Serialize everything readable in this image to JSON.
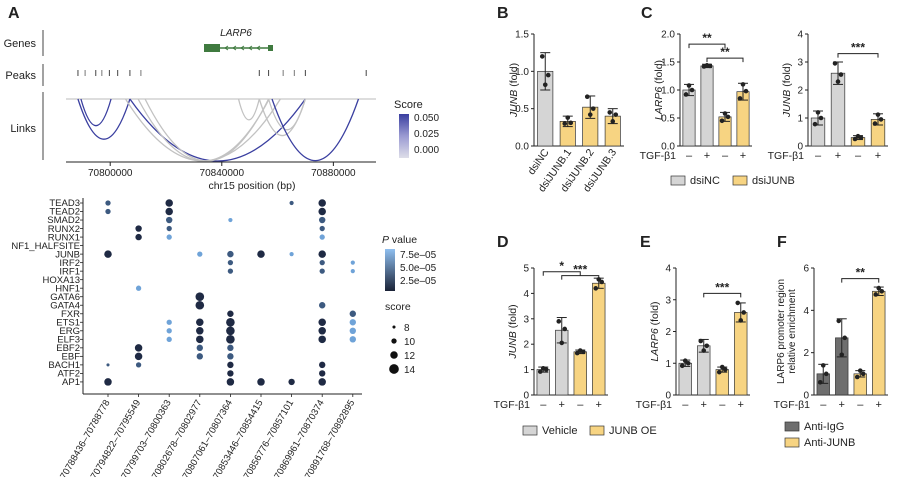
{
  "colors": {
    "grey": "#d5d5d5",
    "dark_grey": "#6e6e6e",
    "yellow": "#f7d482",
    "gene_green": "#3f7a3f",
    "link_blue": "#3a3fa0",
    "link_grey": "#c2c2c2",
    "dot_dark": "#1f2a44",
    "dot_mid": "#3d5a80",
    "dot_light": "#6fa3d8",
    "red_text": "#cc2222"
  },
  "panel_a": {
    "letter": "A",
    "tracks": [
      "Genes",
      "Peaks",
      "Links"
    ],
    "gene_label": "LARP6",
    "score_legend": {
      "title": "Score",
      "ticks": [
        "0.050",
        "0.025",
        "0.000"
      ]
    },
    "xaxis": {
      "label": "chr15 position (bp)",
      "ticks": [
        "70800000",
        "70840000",
        "70880000"
      ],
      "range": [
        70782000,
        70896000
      ]
    },
    "peaks": [
      70788436,
      70794822,
      70799703,
      70802678,
      70807061,
      70853446,
      70856776,
      70869961,
      70891768
    ],
    "links": [
      {
        "from": 70788436,
        "to": 70807061,
        "color": "blue"
      },
      {
        "from": 70789500,
        "to": 70800300,
        "color": "blue"
      },
      {
        "from": 70807061,
        "to": 70869961,
        "color": "blue"
      },
      {
        "from": 70805500,
        "to": 70861000,
        "color": "grey"
      },
      {
        "from": 70810000,
        "to": 70857000,
        "color": "grey"
      },
      {
        "from": 70812500,
        "to": 70856776,
        "color": "grey"
      },
      {
        "from": 70853446,
        "to": 70869961,
        "color": "grey"
      },
      {
        "from": 70856776,
        "to": 70869961,
        "color": "grey"
      },
      {
        "from": 70846000,
        "to": 70853446,
        "color": "grey"
      },
      {
        "from": 70858000,
        "to": 70889000,
        "color": "blue"
      }
    ],
    "dotplot": {
      "tfs": [
        "TEAD3",
        "TEAD2",
        "SMAD2",
        "RUNX2",
        "RUNX1",
        "NF1_HALFSITE",
        "JUNB",
        "IRF2",
        "IRF1",
        "HOXA13",
        "HNF1",
        "GATA6",
        "GATA4",
        "FXR",
        "ETS1",
        "ERG",
        "ELF3",
        "EBF2",
        "EBF",
        "BACH1",
        "ATF2",
        "AP1"
      ],
      "highlight_tf": "JUNB",
      "regions": [
        "70788436–70788778",
        "70794822–70795549",
        "70799703–70800363",
        "70802678–70802977",
        "70807061–70807364",
        "70853446–70854415",
        "70856776–70857101",
        "70869961–70870374",
        "70891768–70892895"
      ],
      "highlight_region": "70853446–70854415",
      "pvalue_legend": {
        "title": "P value",
        "ticks": [
          "7.5e–05",
          "5.0e–05",
          "2.5e–05"
        ]
      },
      "score_legend": {
        "title": "score",
        "ticks": [
          "8",
          "10",
          "12",
          "14"
        ]
      },
      "dots": [
        {
          "tf": "TEAD3",
          "region": 0,
          "score": 10,
          "shade": "mid"
        },
        {
          "tf": "TEAD3",
          "region": 2,
          "score": 12,
          "shade": "dark"
        },
        {
          "tf": "TEAD3",
          "region": 6,
          "score": 9,
          "shade": "mid"
        },
        {
          "tf": "TEAD3",
          "region": 7,
          "score": 12,
          "shade": "dark"
        },
        {
          "tf": "TEAD2",
          "region": 0,
          "score": 10,
          "shade": "mid"
        },
        {
          "tf": "TEAD2",
          "region": 2,
          "score": 12,
          "shade": "dark"
        },
        {
          "tf": "TEAD2",
          "region": 7,
          "score": 12,
          "shade": "dark"
        },
        {
          "tf": "SMAD2",
          "region": 2,
          "score": 11,
          "shade": "mid"
        },
        {
          "tf": "SMAD2",
          "region": 4,
          "score": 9,
          "shade": "light"
        },
        {
          "tf": "SMAD2",
          "region": 7,
          "score": 11,
          "shade": "mid"
        },
        {
          "tf": "RUNX2",
          "region": 1,
          "score": 11,
          "shade": "dark"
        },
        {
          "tf": "RUNX2",
          "region": 2,
          "score": 10,
          "shade": "mid"
        },
        {
          "tf": "RUNX2",
          "region": 7,
          "score": 10,
          "shade": "mid"
        },
        {
          "tf": "RUNX1",
          "region": 1,
          "score": 11,
          "shade": "dark"
        },
        {
          "tf": "RUNX1",
          "region": 2,
          "score": 10,
          "shade": "light"
        },
        {
          "tf": "RUNX1",
          "region": 7,
          "score": 10,
          "shade": "light"
        },
        {
          "tf": "JUNB",
          "region": 0,
          "score": 12,
          "shade": "dark"
        },
        {
          "tf": "JUNB",
          "region": 3,
          "score": 10,
          "shade": "light"
        },
        {
          "tf": "JUNB",
          "region": 4,
          "score": 11,
          "shade": "mid"
        },
        {
          "tf": "JUNB",
          "region": 5,
          "score": 12,
          "shade": "dark"
        },
        {
          "tf": "JUNB",
          "region": 6,
          "score": 9,
          "shade": "light"
        },
        {
          "tf": "JUNB",
          "region": 7,
          "score": 12,
          "shade": "dark"
        },
        {
          "tf": "IRF2",
          "region": 4,
          "score": 10,
          "shade": "mid"
        },
        {
          "tf": "IRF2",
          "region": 7,
          "score": 10,
          "shade": "mid"
        },
        {
          "tf": "IRF2",
          "region": 8,
          "score": 9,
          "shade": "light"
        },
        {
          "tf": "IRF1",
          "region": 4,
          "score": 10,
          "shade": "mid"
        },
        {
          "tf": "IRF1",
          "region": 7,
          "score": 10,
          "shade": "mid"
        },
        {
          "tf": "IRF1",
          "region": 8,
          "score": 9,
          "shade": "light"
        },
        {
          "tf": "HNF1",
          "region": 1,
          "score": 10,
          "shade": "light"
        },
        {
          "tf": "GATA6",
          "region": 3,
          "score": 13,
          "shade": "dark"
        },
        {
          "tf": "GATA4",
          "region": 3,
          "score": 13,
          "shade": "dark"
        },
        {
          "tf": "GATA4",
          "region": 7,
          "score": 11,
          "shade": "mid"
        },
        {
          "tf": "FXR",
          "region": 4,
          "score": 11,
          "shade": "dark"
        },
        {
          "tf": "FXR",
          "region": 8,
          "score": 11,
          "shade": "mid"
        },
        {
          "tf": "ETS1",
          "region": 2,
          "score": 10,
          "shade": "light"
        },
        {
          "tf": "ETS1",
          "region": 3,
          "score": 12,
          "shade": "dark"
        },
        {
          "tf": "ETS1",
          "region": 4,
          "score": 13,
          "shade": "dark"
        },
        {
          "tf": "ETS1",
          "region": 7,
          "score": 12,
          "shade": "dark"
        },
        {
          "tf": "ETS1",
          "region": 8,
          "score": 11,
          "shade": "light"
        },
        {
          "tf": "ERG",
          "region": 2,
          "score": 10,
          "shade": "light"
        },
        {
          "tf": "ERG",
          "region": 3,
          "score": 12,
          "shade": "dark"
        },
        {
          "tf": "ERG",
          "region": 4,
          "score": 13,
          "shade": "dark"
        },
        {
          "tf": "ERG",
          "region": 7,
          "score": 12,
          "shade": "dark"
        },
        {
          "tf": "ERG",
          "region": 8,
          "score": 11,
          "shade": "light"
        },
        {
          "tf": "ELF3",
          "region": 2,
          "score": 10,
          "shade": "light"
        },
        {
          "tf": "ELF3",
          "region": 3,
          "score": 12,
          "shade": "dark"
        },
        {
          "tf": "ELF3",
          "region": 4,
          "score": 13,
          "shade": "dark"
        },
        {
          "tf": "ELF3",
          "region": 7,
          "score": 12,
          "shade": "dark"
        },
        {
          "tf": "ELF3",
          "region": 8,
          "score": 11,
          "shade": "light"
        },
        {
          "tf": "EBF2",
          "region": 1,
          "score": 12,
          "shade": "dark"
        },
        {
          "tf": "EBF2",
          "region": 3,
          "score": 11,
          "shade": "mid"
        },
        {
          "tf": "EBF2",
          "region": 4,
          "score": 11,
          "shade": "mid"
        },
        {
          "tf": "EBF",
          "region": 1,
          "score": 12,
          "shade": "dark"
        },
        {
          "tf": "EBF",
          "region": 3,
          "score": 11,
          "shade": "mid"
        },
        {
          "tf": "EBF",
          "region": 4,
          "score": 11,
          "shade": "mid"
        },
        {
          "tf": "BACH1",
          "region": 0,
          "score": 8,
          "shade": "mid"
        },
        {
          "tf": "BACH1",
          "region": 1,
          "score": 10,
          "shade": "mid"
        },
        {
          "tf": "BACH1",
          "region": 4,
          "score": 11,
          "shade": "dark"
        },
        {
          "tf": "BACH1",
          "region": 7,
          "score": 11,
          "shade": "dark"
        },
        {
          "tf": "ATF2",
          "region": 4,
          "score": 11,
          "shade": "dark"
        },
        {
          "tf": "ATF2",
          "region": 7,
          "score": 11,
          "shade": "dark"
        },
        {
          "tf": "AP1",
          "region": 0,
          "score": 12,
          "shade": "dark"
        },
        {
          "tf": "AP1",
          "region": 4,
          "score": 12,
          "shade": "dark"
        },
        {
          "tf": "AP1",
          "region": 5,
          "score": 12,
          "shade": "dark"
        },
        {
          "tf": "AP1",
          "region": 6,
          "score": 11,
          "shade": "dark"
        },
        {
          "tf": "AP1",
          "region": 7,
          "score": 12,
          "shade": "dark"
        }
      ]
    }
  },
  "bar_charts": {
    "tgf_label": "TGF-β1",
    "minus": "–",
    "plus": "+",
    "legend_c": [
      "dsiNC",
      "dsiJUNB"
    ],
    "legend_d": [
      "Vehicle",
      "JUNB OE"
    ],
    "legend_f": [
      "Anti-IgG",
      "Anti-JUNB"
    ]
  },
  "chart_data": [
    {
      "panel": "B",
      "type": "bar",
      "ylabel": "JUNB (fold)",
      "ylim": [
        0,
        1.5
      ],
      "yticks": [
        "0.0",
        "0.5",
        "1.0",
        "1.5"
      ],
      "categories": [
        "dsiNC",
        "dsiJUNB.1",
        "dsiJUNB.2",
        "dsiJUNB.3"
      ],
      "values": [
        1.0,
        0.33,
        0.52,
        0.4
      ],
      "errors": [
        0.25,
        0.07,
        0.15,
        0.1
      ],
      "colors": [
        "grey",
        "yellow",
        "yellow",
        "yellow"
      ],
      "points": [
        [
          1.2,
          0.82,
          0.95
        ],
        [
          0.3,
          0.38,
          0.31
        ],
        [
          0.66,
          0.42,
          0.5
        ],
        [
          0.45,
          0.33,
          0.42
        ]
      ]
    },
    {
      "panel": "C1",
      "type": "bar",
      "ylabel": "LARP6 (fold)",
      "ylim": [
        0,
        2.0
      ],
      "yticks": [
        "0.0",
        "0.5",
        "1.0",
        "1.5",
        "2.0"
      ],
      "tgf": [
        "–",
        "+",
        "–",
        "+"
      ],
      "values": [
        1.0,
        1.43,
        0.52,
        0.97
      ],
      "errors": [
        0.1,
        0.03,
        0.08,
        0.15
      ],
      "colors": [
        "grey",
        "grey",
        "yellow",
        "yellow"
      ],
      "points": [
        [
          0.92,
          1.08,
          1.0
        ],
        [
          1.42,
          1.44,
          1.43
        ],
        [
          0.45,
          0.58,
          0.52
        ],
        [
          0.85,
          1.1,
          0.98
        ]
      ],
      "brackets": [
        {
          "from": 0,
          "to": 2,
          "level": 1.82,
          "label": "**"
        },
        {
          "from": 1,
          "to": 3,
          "level": 1.57,
          "label": "**"
        }
      ]
    },
    {
      "panel": "C2",
      "type": "bar",
      "ylabel": "JUNB (fold)",
      "ylim": [
        0,
        4
      ],
      "yticks": [
        "0",
        "1",
        "2",
        "3",
        "4"
      ],
      "tgf": [
        "–",
        "+",
        "–",
        "+"
      ],
      "values": [
        1.0,
        2.6,
        0.3,
        0.95
      ],
      "errors": [
        0.25,
        0.4,
        0.07,
        0.2
      ],
      "colors": [
        "grey",
        "grey",
        "yellow",
        "yellow"
      ],
      "points": [
        [
          0.78,
          1.2,
          1.0
        ],
        [
          2.95,
          2.3,
          2.55
        ],
        [
          0.25,
          0.35,
          0.3
        ],
        [
          0.8,
          1.12,
          0.95
        ]
      ],
      "brackets": [
        {
          "from": 1,
          "to": 3,
          "level": 3.3,
          "label": "***"
        }
      ]
    },
    {
      "panel": "D",
      "type": "bar",
      "ylabel": "JUNB (fold)",
      "ylim": [
        0,
        5
      ],
      "yticks": [
        "0",
        "1",
        "2",
        "3",
        "4",
        "5"
      ],
      "tgf": [
        "–",
        "+",
        "–",
        "+"
      ],
      "values": [
        1.0,
        2.55,
        1.7,
        4.4
      ],
      "errors": [
        0.1,
        0.5,
        0.07,
        0.2
      ],
      "colors": [
        "grey",
        "grey",
        "yellow",
        "yellow"
      ],
      "points": [
        [
          0.92,
          1.05,
          1.0
        ],
        [
          2.9,
          2.05,
          2.6
        ],
        [
          1.65,
          1.75,
          1.7
        ],
        [
          4.2,
          4.55,
          4.45
        ]
      ],
      "brackets": [
        {
          "from": 0,
          "to": 2,
          "level": 4.85,
          "label": "*"
        },
        {
          "from": 1,
          "to": 3,
          "level": 4.7,
          "label": "***"
        }
      ]
    },
    {
      "panel": "E",
      "type": "bar",
      "ylabel": "LARP6 (fold)",
      "ylim": [
        0,
        4
      ],
      "yticks": [
        "0",
        "1",
        "2",
        "3",
        "4"
      ],
      "tgf": [
        "–",
        "+",
        "–",
        "+"
      ],
      "values": [
        1.0,
        1.55,
        0.8,
        2.6
      ],
      "errors": [
        0.1,
        0.2,
        0.08,
        0.3
      ],
      "colors": [
        "grey",
        "grey",
        "yellow",
        "yellow"
      ],
      "points": [
        [
          0.92,
          1.08,
          1.0
        ],
        [
          1.7,
          1.4,
          1.55
        ],
        [
          0.72,
          0.88,
          0.8
        ],
        [
          2.9,
          2.35,
          2.6
        ]
      ],
      "brackets": [
        {
          "from": 1,
          "to": 3,
          "level": 3.2,
          "label": "***"
        }
      ]
    },
    {
      "panel": "F",
      "type": "bar",
      "ylabel": "LARP6 promoter region relative enrichment",
      "ylim": [
        0,
        6
      ],
      "yticks": [
        "0",
        "2",
        "4",
        "6"
      ],
      "tgf": [
        "–",
        "+",
        "–",
        "+"
      ],
      "values": [
        1.0,
        2.7,
        1.0,
        4.9
      ],
      "errors": [
        0.45,
        0.9,
        0.15,
        0.2
      ],
      "colors": [
        "dark_grey",
        "dark_grey",
        "yellow",
        "yellow"
      ],
      "points": [
        [
          0.6,
          1.4,
          1.0
        ],
        [
          3.5,
          1.9,
          2.7
        ],
        [
          0.85,
          1.15,
          1.0
        ],
        [
          4.75,
          5.05,
          4.9
        ]
      ],
      "brackets": [
        {
          "from": 1,
          "to": 3,
          "level": 5.5,
          "label": "**"
        }
      ]
    }
  ]
}
